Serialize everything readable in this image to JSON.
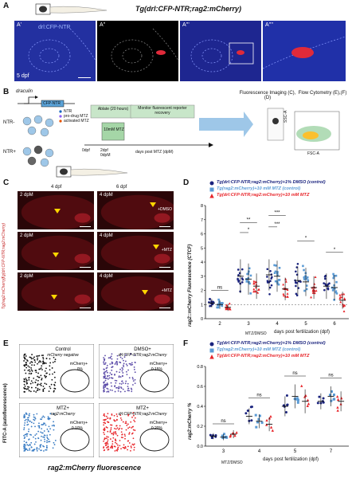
{
  "panelA": {
    "label": "A",
    "title_italic": "Tg(drl:CFP-NTR;rag2:mCherry)",
    "subpanels": [
      {
        "label": "A'",
        "inner": "drl:CFP-NTR",
        "bottom": "5 dpf"
      },
      {
        "label": "A''"
      },
      {
        "label": "A'''"
      },
      {
        "label": "A''''"
      }
    ]
  },
  "panelB": {
    "label": "B",
    "construct_top": "draculin",
    "construct_box": "CFP-NTR",
    "legend": [
      "NTR",
      "pro-drug MTZ",
      "activated MTZ"
    ],
    "group_top": "NTR-",
    "group_bottom": "NTR+",
    "ablate_title": "Ablate (20 hours)",
    "mtz_box": "10mM MTZ",
    "monitor": "Monitor fluorescent reporter recovery",
    "timeline": [
      "0dpf",
      "2dpf",
      "0dpM"
    ],
    "dpm_label": "days post MTZ (dpM)",
    "imaging_title": "Fluorescence Imaging (C), (D)",
    "flow_title": "Flow Cytometry (E),(F)",
    "ssc_label": "SSC-A",
    "fsc_label": "FSC-A"
  },
  "panelC": {
    "label": "C",
    "header_4": "4 dpf",
    "header_6": "6 dpf",
    "rows": [
      {
        "side": "+DMSO",
        "left": "2 dpM",
        "right": "4 dpM"
      },
      {
        "side": "+MTZ",
        "left": "2 dpM",
        "right": "4 dpM"
      },
      {
        "side": "+MTZ",
        "left": "2 dpM",
        "right": "4 dpM"
      }
    ],
    "side_top": "Tg(drl:CFP-NTR;rag2:mCherry)",
    "side_bottom": "Tg(rag2:mCherry)"
  },
  "panelD": {
    "label": "D",
    "legend": [
      {
        "text": "Tg(drl:CFP-NTR;rag2:mCherry)+1% DMSO (control)",
        "color": "#1a237e",
        "marker": "circle"
      },
      {
        "text": "Tg(rag2:mCherry)+10 mM MTZ (control)",
        "color": "#5b9bd5",
        "marker": "square"
      },
      {
        "text": "Tg(drl:CFP-NTR;rag2:mCherry)+10 mM MTZ",
        "color": "#e8262b",
        "marker": "triangle"
      }
    ],
    "ylabel": "rag2::mCherry Fluorescence (CTCF)",
    "xlabel": "days post fertilization (dpf)",
    "mtz_dmso": "MTZ/DMSO",
    "sig": [
      "ns",
      "*",
      "**",
      "***",
      "***",
      "*",
      "*"
    ]
  },
  "panelE": {
    "label": "E",
    "ylabel": "FITC-A (autofluorescence)",
    "xlabel": "rag2:mCherry fluorescence",
    "plots": [
      {
        "title": "Control",
        "sub": "mCherry negative",
        "gate": "mCherry+",
        "pct": "0%",
        "color": "#111111"
      },
      {
        "title": "DMSO+",
        "sub": "drl:CFP-NTR;rag2:mCherry",
        "gate": "mCherry+",
        "pct": "0.15%",
        "color": "#5b4ba8"
      },
      {
        "title": "MTZ+",
        "sub": "rag2:mCherry",
        "gate": "mCherry+",
        "pct": "0.10%",
        "color": "#3b7dc4"
      },
      {
        "title": "MTZ+",
        "sub": "drl:CFP-NTR;rag2:mCherry",
        "gate": "mCherry+",
        "pct": "0.20%",
        "color": "#e8262b"
      }
    ]
  },
  "panelF": {
    "label": "F",
    "legend": [
      {
        "text": "Tg(drl:CFP-NTR;rag2:mCherry)+1% DMSO (control)",
        "color": "#1a237e",
        "marker": "circle"
      },
      {
        "text": "Tg(rag2:mCherry)+10 mM MTZ (control)",
        "color": "#5b9bd5",
        "marker": "square"
      },
      {
        "text": "Tg(drl:CFP-NTR;rag2:mCherry)+10 mM MTZ",
        "color": "#e8262b",
        "marker": "triangle"
      }
    ],
    "ylabel": "rag2:mCherry %",
    "xlabel": "days post fertilization (dpf)",
    "mtz_dmso": "MTZ/DMSO",
    "sig": [
      "ns",
      "ns",
      "ns",
      "ns"
    ]
  },
  "chart_data": [
    {
      "type": "scatter",
      "ylabel": "rag2::mCherry Fluorescence (CTCF)",
      "xlabel": "days post fertilization (dpf)",
      "categories": [
        "2",
        "3",
        "4",
        "5",
        "6"
      ],
      "ylim": [
        0,
        8
      ],
      "yticks": [
        0,
        1,
        2,
        3,
        4,
        5,
        6,
        7,
        8
      ],
      "series": [
        {
          "name": "Tg(drl:CFP-NTR;rag2:mCherry)+1% DMSO (control)",
          "means": [
            1.1,
            3.0,
            3.1,
            2.7,
            2.3
          ],
          "sd": [
            0.3,
            1.2,
            1.1,
            1.0,
            0.9
          ]
        },
        {
          "name": "Tg(rag2:mCherry)+10 mM MTZ (control)",
          "means": [
            1.0,
            2.8,
            3.0,
            2.6,
            2.2
          ],
          "sd": [
            0.3,
            1.1,
            1.1,
            1.0,
            0.9
          ]
        },
        {
          "name": "Tg(drl:CFP-NTR;rag2:mCherry)+10 mM MTZ",
          "means": [
            0.8,
            2.3,
            2.1,
            2.2,
            1.3
          ],
          "sd": [
            0.25,
            0.9,
            0.8,
            0.8,
            0.6
          ]
        }
      ]
    },
    {
      "type": "scatter",
      "ylabel": "rag2:mCherry %",
      "xlabel": "days post fertilization (dpf)",
      "categories": [
        "3",
        "4",
        "5",
        "7"
      ],
      "ylim": [
        0.0,
        0.8
      ],
      "yticks": [
        0.0,
        0.2,
        0.4,
        0.6,
        0.8
      ],
      "series": [
        {
          "name": "Tg(drl:CFP-NTR;rag2:mCherry)+1% DMSO (control)",
          "means": [
            0.1,
            0.3,
            0.4,
            0.45
          ],
          "sd": [
            0.03,
            0.08,
            0.1,
            0.08
          ]
        },
        {
          "name": "Tg(rag2:mCherry)+10 mM MTZ (control)",
          "means": [
            0.09,
            0.25,
            0.5,
            0.5
          ],
          "sd": [
            0.03,
            0.07,
            0.12,
            0.1
          ]
        },
        {
          "name": "Tg(drl:CFP-NTR;rag2:mCherry)+10 mM MTZ",
          "means": [
            0.12,
            0.22,
            0.45,
            0.45
          ],
          "sd": [
            0.04,
            0.07,
            0.12,
            0.1
          ]
        }
      ]
    }
  ]
}
